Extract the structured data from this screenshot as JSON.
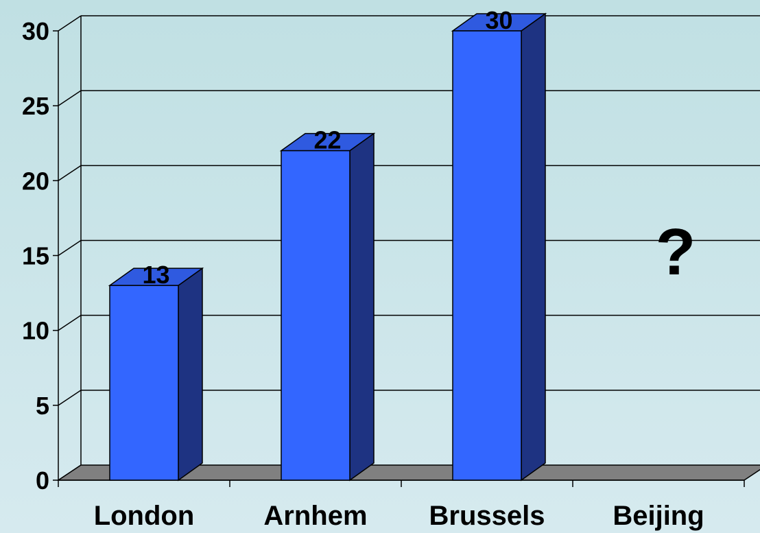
{
  "chart_data": {
    "type": "bar",
    "categories": [
      "London",
      "Arnhem",
      "Brussels",
      "Beijing"
    ],
    "values": [
      13,
      22,
      30,
      null
    ],
    "data_labels": [
      "13",
      "22",
      "30",
      ""
    ],
    "annotations": [
      {
        "category": "Beijing",
        "text": "?"
      }
    ],
    "yticks": [
      0,
      5,
      10,
      15,
      20,
      25,
      30
    ],
    "ylim": [
      0,
      30
    ],
    "title": "",
    "xlabel": "",
    "ylabel": "",
    "grid": true,
    "legend": "none",
    "style": "3d-column"
  },
  "colors": {
    "bar_front": "#3366ff",
    "bar_top": "#2f5ae0",
    "bar_side": "#1e3382",
    "floor": "#808080",
    "grid": "#000000"
  }
}
